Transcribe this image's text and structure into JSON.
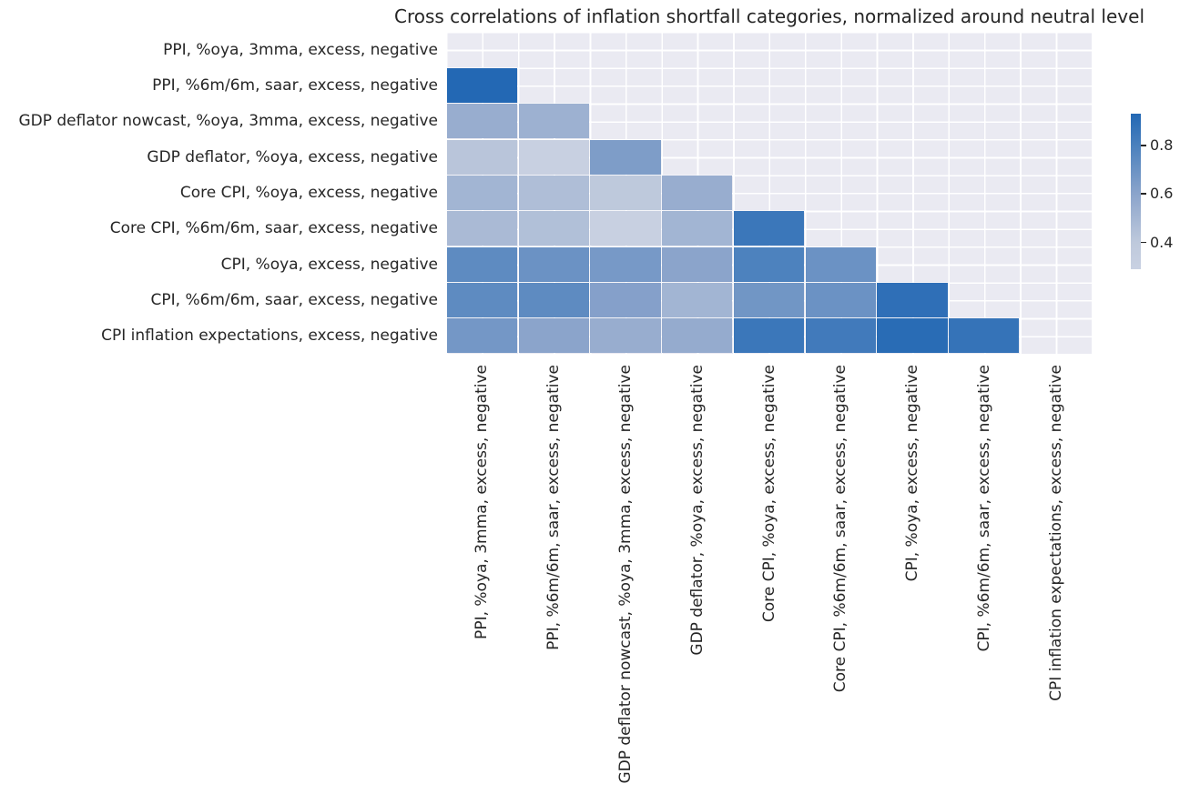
{
  "chart_data": {
    "type": "heatmap",
    "title": "Cross correlations of inflation shortfall categories, normalized around neutral level",
    "categories": [
      "PPI, %oya, 3mma, excess, negative",
      "PPI, %6m/6m, saar, excess, negative",
      "GDP deflator nowcast, %oya, 3mma, excess, negative",
      "GDP deflator, %oya, excess, negative",
      "Core CPI, %oya, excess, negative",
      "Core CPI, %6m/6m, saar, excess, negative",
      "CPI, %oya, excess, negative",
      "CPI, %6m/6m, saar, excess, negative",
      "CPI inflation expectations, excess, negative"
    ],
    "x_axis": "same categories, left to right",
    "y_axis": "same categories, top to bottom",
    "mask": "upper triangle and diagonal hidden (only cells below the diagonal are drawn)",
    "values": [
      [
        null,
        null,
        null,
        null,
        null,
        null,
        null,
        null,
        null
      ],
      [
        0.93,
        null,
        null,
        null,
        null,
        null,
        null,
        null,
        null
      ],
      [
        0.55,
        0.53,
        null,
        null,
        null,
        null,
        null,
        null,
        null
      ],
      [
        0.42,
        0.3,
        0.64,
        null,
        null,
        null,
        null,
        null,
        null
      ],
      [
        0.51,
        0.46,
        0.4,
        0.55,
        null,
        null,
        null,
        null,
        null
      ],
      [
        0.48,
        0.45,
        0.3,
        0.51,
        0.85,
        null,
        null,
        null,
        null
      ],
      [
        0.74,
        0.7,
        0.66,
        0.6,
        0.79,
        0.7,
        null,
        null,
        null
      ],
      [
        0.74,
        0.74,
        0.62,
        0.51,
        0.68,
        0.7,
        0.89,
        null,
        null
      ],
      [
        0.67,
        0.6,
        0.55,
        0.56,
        0.85,
        0.83,
        0.91,
        0.87,
        null
      ]
    ],
    "color_scale": {
      "name": "Blues",
      "vmin": 0.29,
      "vmax": 0.93,
      "anchors": [
        {
          "value": 0.29,
          "color": "#c9d1e2"
        },
        {
          "value": 0.4,
          "color": "#bec9dc"
        },
        {
          "value": 0.6,
          "color": "#8ba4cb"
        },
        {
          "value": 0.8,
          "color": "#4a80bd"
        },
        {
          "value": 0.93,
          "color": "#2368b4"
        }
      ]
    },
    "colorbar": {
      "tick_labels": [
        "0.8",
        "0.6",
        "0.4"
      ],
      "tick_values": [
        0.8,
        0.6,
        0.4
      ],
      "legend_position": "right"
    },
    "plot_background": "#eaeaf2",
    "grid_color": "#ffffff",
    "text_color": "#262626",
    "grid": true
  }
}
